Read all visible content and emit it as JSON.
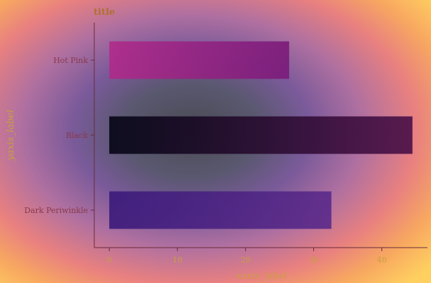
{
  "chart_data": {
    "type": "bar",
    "orientation": "horizontal",
    "title": "title",
    "xlabel": "xaxis_label",
    "ylabel": "yaxis_label",
    "categories": [
      "Dark Periwinkle",
      "Black",
      "Hot Pink"
    ],
    "values": [
      32.6,
      44.5,
      26.4
    ],
    "xlim": [
      -2.2,
      46.7
    ],
    "xticks": [
      0,
      10,
      20,
      30,
      40
    ],
    "grid": false,
    "bar_colors": {
      "Dark Periwinkle": [
        "#3a1a7a",
        "#5a2a8a"
      ],
      "Black": [
        "#050515",
        "#4a1048"
      ],
      "Hot Pink": [
        "#b02a8a",
        "#7a1a7a"
      ]
    },
    "text_colors": {
      "title": "#b07030",
      "axis_label": "#c8a040",
      "tick_label": "#8a3a4a",
      "axis_line": "#6a2a3a"
    }
  }
}
